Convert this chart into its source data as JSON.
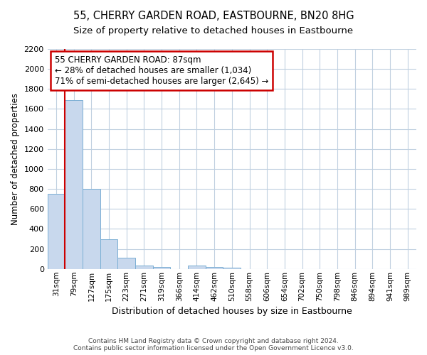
{
  "title1": "55, CHERRY GARDEN ROAD, EASTBOURNE, BN20 8HG",
  "title2": "Size of property relative to detached houses in Eastbourne",
  "xlabel": "Distribution of detached houses by size in Eastbourne",
  "ylabel": "Number of detached properties",
  "categories": [
    "31sqm",
    "79sqm",
    "127sqm",
    "175sqm",
    "223sqm",
    "271sqm",
    "319sqm",
    "366sqm",
    "414sqm",
    "462sqm",
    "510sqm",
    "558sqm",
    "606sqm",
    "654sqm",
    "702sqm",
    "750sqm",
    "798sqm",
    "846sqm",
    "894sqm",
    "941sqm",
    "989sqm"
  ],
  "values": [
    750,
    1690,
    800,
    300,
    110,
    35,
    20,
    0,
    35,
    20,
    10,
    0,
    0,
    0,
    0,
    0,
    0,
    0,
    0,
    0,
    0
  ],
  "bar_color": "#c8d8ed",
  "bar_edge_color": "#7bafd4",
  "vline_color": "#cc0000",
  "annotation_text": "55 CHERRY GARDEN ROAD: 87sqm\n← 28% of detached houses are smaller (1,034)\n71% of semi-detached houses are larger (2,645) →",
  "annotation_box_color": "#ffffff",
  "annotation_box_edge": "#cc0000",
  "ylim": [
    0,
    2200
  ],
  "yticks": [
    0,
    200,
    400,
    600,
    800,
    1000,
    1200,
    1400,
    1600,
    1800,
    2000,
    2200
  ],
  "footer1": "Contains HM Land Registry data © Crown copyright and database right 2024.",
  "footer2": "Contains public sector information licensed under the Open Government Licence v3.0.",
  "bg_color": "#ffffff",
  "grid_color": "#c0d0e0",
  "title_fontsize": 10.5,
  "subtitle_fontsize": 9.5
}
